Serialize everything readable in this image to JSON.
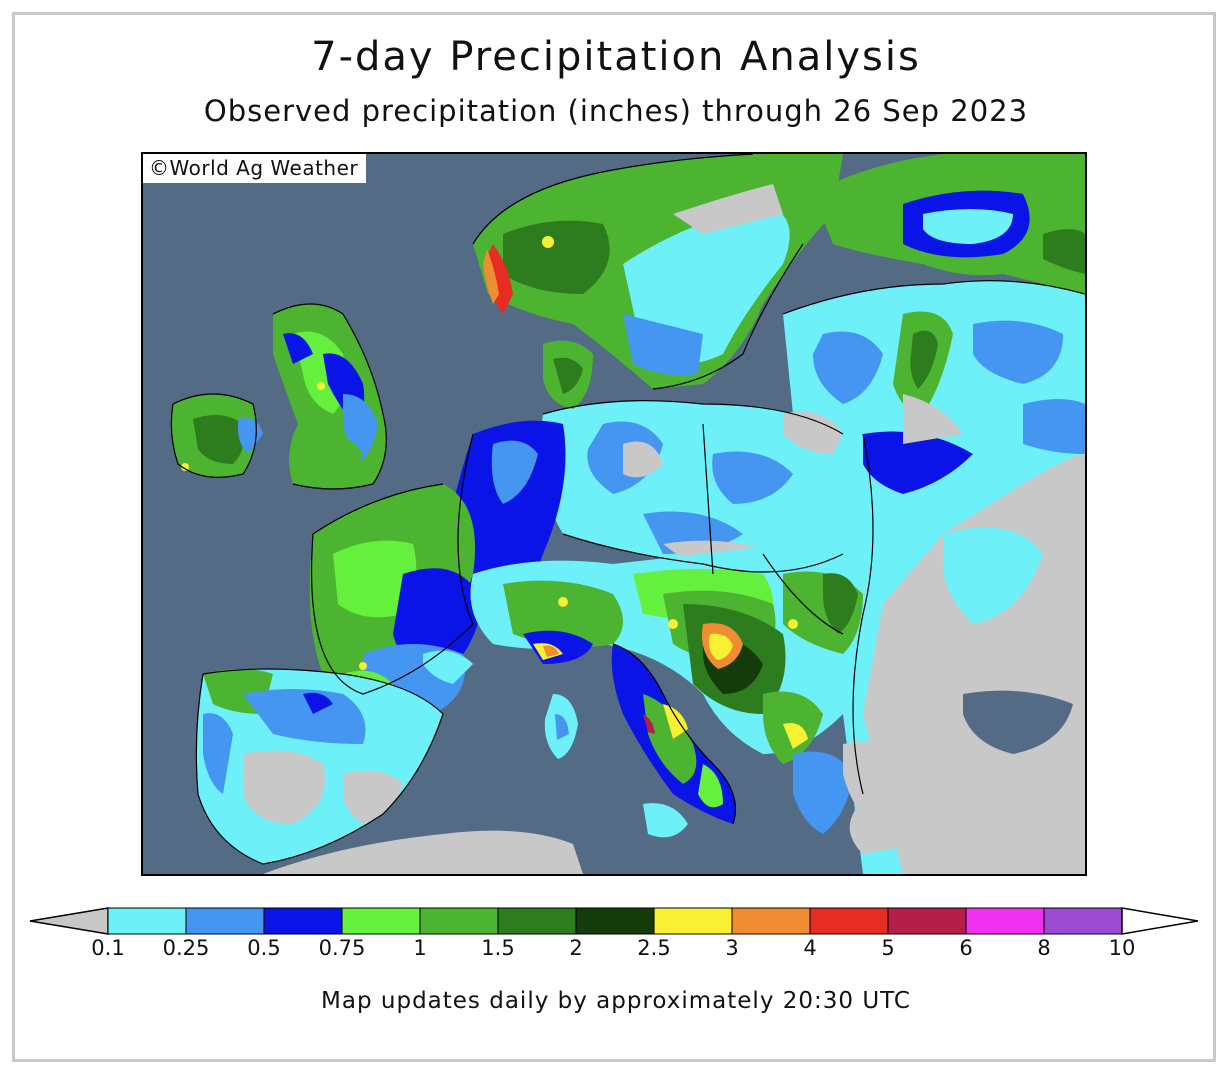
{
  "title": "7-day Precipitation Analysis",
  "subtitle": "Observed precipitation (inches) through 26 Sep 2023",
  "credit": "©World Ag Weather",
  "footer": "Map updates daily by approximately 20:30 UTC",
  "legend": {
    "ticks": [
      "0.1",
      "0.25",
      "0.5",
      "0.75",
      "1",
      "1.5",
      "2",
      "2.5",
      "3",
      "4",
      "5",
      "6",
      "8",
      "10"
    ],
    "colors": [
      "#6ef0f8",
      "#4596f0",
      "#0a14e6",
      "#64f03c",
      "#4cb430",
      "#2d7d1e",
      "#143c0a",
      "#f8f032",
      "#f08c32",
      "#e62d23",
      "#b41e4b",
      "#f032f0",
      "#9b4bd2"
    ],
    "below_color": "#c8c8c8",
    "above_color": "#ffffff"
  },
  "map_colors": {
    "ocean": "#546b85",
    "dry_land": "#c8c8c8"
  }
}
